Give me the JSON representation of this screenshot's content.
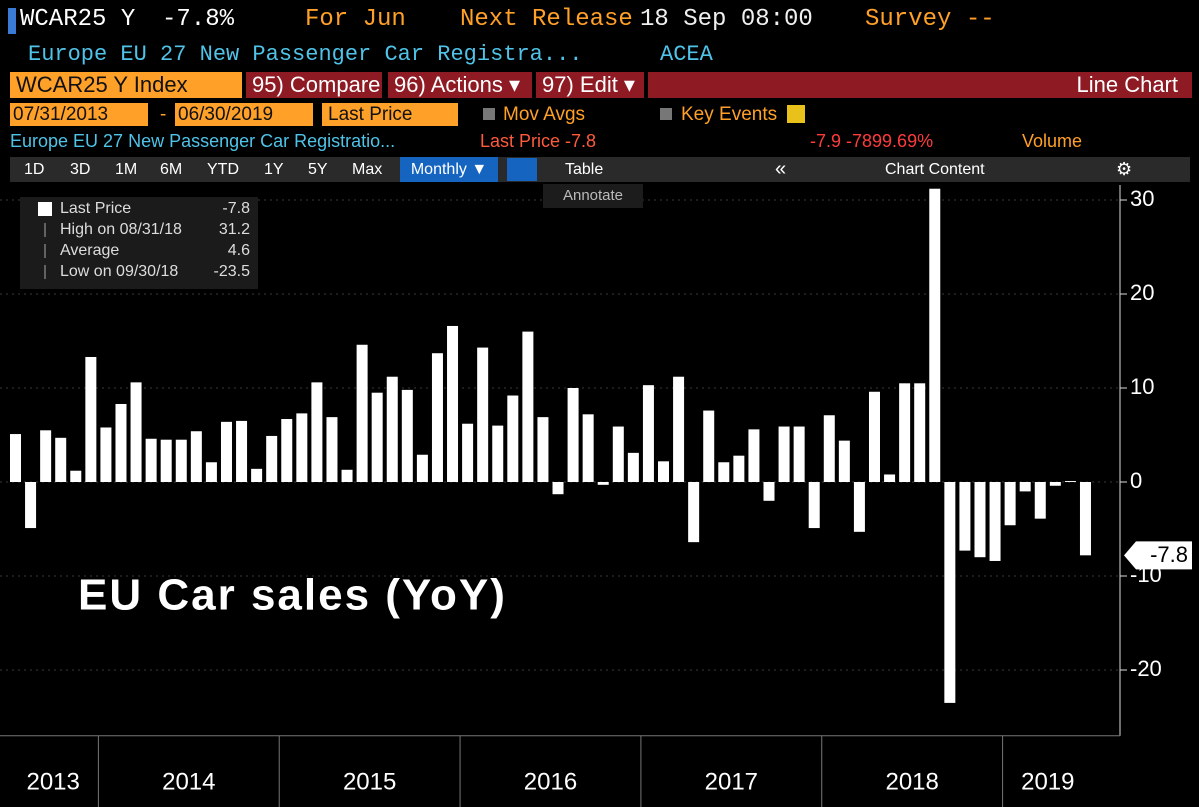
{
  "header": {
    "ticker": "WCAR25 Y",
    "change": "-7.8%",
    "period": "For Jun",
    "release_label": "Next Release",
    "release_date": "18 Sep 08:00",
    "survey": "Survey --",
    "description": "Europe EU 27 New Passenger Car Registra...",
    "source": "ACEA"
  },
  "toolbar": {
    "security": "WCAR25 Y Index",
    "compare": "95) Compare",
    "actions": "96) Actions ▾",
    "edit": "97) Edit ▾",
    "view": "Line Chart",
    "start_date": "07/31/2013",
    "end_date": "06/30/2019",
    "separator": "-",
    "field": "Last Price",
    "mov_avgs": "Mov Avgs",
    "key_events": "Key Events"
  },
  "info": {
    "description": "Europe EU 27 New Passenger Car Registratio...",
    "last_price": "Last Price -7.8",
    "change": "-7.9 -7899.69%",
    "volume": "Volume"
  },
  "ranges": [
    "1D",
    "3D",
    "1M",
    "6M",
    "YTD",
    "1Y",
    "5Y",
    "Max"
  ],
  "buttons": {
    "frequency": "Monthly ▼",
    "table": "Table",
    "collapse": "«",
    "chart_content": "Chart Content",
    "annotate": "Annotate"
  },
  "chart_data": {
    "type": "bar",
    "title": "EU Car sales (YoY)",
    "color": "#ffffff",
    "categories": [
      null,
      null,
      null,
      null,
      null,
      null,
      null,
      null,
      null,
      null,
      null,
      null,
      null,
      null,
      null,
      null,
      null,
      null,
      null,
      null,
      null,
      null,
      null,
      null,
      null,
      null,
      null,
      null,
      null,
      null,
      null,
      null,
      null,
      null,
      null,
      null,
      null,
      null,
      null,
      null,
      null,
      null,
      null,
      null,
      null,
      null,
      null,
      null,
      null,
      null,
      null,
      null,
      null,
      null,
      null,
      null,
      null,
      null,
      null,
      null,
      null,
      null,
      null,
      null,
      null,
      null,
      null,
      null,
      null,
      null,
      null,
      null
    ],
    "values": [
      5.1,
      -4.9,
      5.5,
      4.7,
      1.2,
      13.3,
      5.8,
      8.3,
      10.6,
      4.6,
      4.5,
      4.5,
      5.4,
      2.1,
      6.4,
      6.5,
      1.4,
      4.9,
      6.7,
      7.3,
      10.6,
      6.9,
      1.3,
      14.6,
      9.5,
      11.2,
      9.8,
      2.9,
      13.7,
      16.6,
      6.2,
      14.3,
      6.0,
      9.2,
      16.0,
      6.9,
      -1.3,
      10.0,
      7.2,
      -0.3,
      5.9,
      3.1,
      10.3,
      2.2,
      11.2,
      -6.4,
      7.6,
      2.1,
      2.8,
      5.6,
      -2.0,
      5.9,
      5.9,
      -4.9,
      7.1,
      4.4,
      -5.3,
      9.6,
      0.8,
      10.5,
      10.5,
      31.2,
      -23.5,
      -7.3,
      -8.0,
      -8.4,
      -4.6,
      -1.0,
      -3.9,
      -0.4,
      0.1,
      -7.8
    ],
    "last_label": "-7.8",
    "xtick_labels": [
      "2013",
      "2014",
      "2015",
      "2016",
      "2017",
      "2018",
      "2019"
    ],
    "ylim": [
      -27,
      32
    ],
    "yticks": [
      -20,
      -10,
      0,
      10,
      20,
      30
    ],
    "grid": true,
    "legend": [
      {
        "label": "Last Price",
        "value": "-7.8"
      },
      {
        "label": "High on 08/31/18",
        "value": "31.2"
      },
      {
        "label": "Average",
        "value": "4.6"
      },
      {
        "label": "Low on 09/30/18",
        "value": "-23.5"
      }
    ]
  }
}
